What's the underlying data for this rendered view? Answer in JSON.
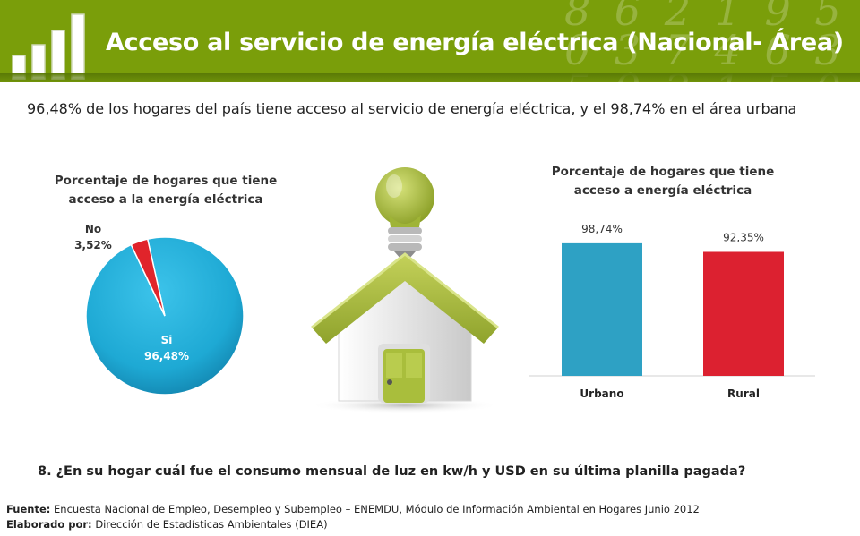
{
  "header": {
    "title": "Acceso al servicio de energía eléctrica (Nacional- Área)",
    "deco_digits": "8 6 2 1 9 5\n0 3 7 4 6 3 8\n5 9 2 1 5 0"
  },
  "subtitle": "96,48% de los hogares del país tiene acceso al servicio de energía eléctrica, y el 98,74% en el área urbana",
  "colors": {
    "header_green": "#7a9e0a",
    "pie_si": "#1ea9d4",
    "pie_no": "#e0242b",
    "bar_urbano": "#2ea1c4",
    "bar_rural": "#dc2130",
    "house_green": "#a4b83c"
  },
  "chart_data": [
    {
      "type": "pie",
      "title": "Porcentaje de hogares que tiene acceso a la energía eléctrica",
      "categories": [
        "Si",
        "No"
      ],
      "values": [
        96.48,
        3.52
      ],
      "labels": [
        {
          "name": "Si",
          "value": "96,48%"
        },
        {
          "name": "No",
          "value": "3,52%"
        }
      ]
    },
    {
      "type": "bar",
      "title": "Porcentaje de hogares que tiene acceso a energía eléctrica",
      "categories": [
        "Urbano",
        "Rural"
      ],
      "values": [
        98.74,
        92.35
      ],
      "value_labels": [
        "98,74%",
        "92,35%"
      ],
      "ylim": [
        0,
        100
      ],
      "xlabel": "",
      "ylabel": ""
    }
  ],
  "question": "8. ¿En su hogar cuál fue el consumo mensual de luz en kw/h y USD en su última planilla pagada?",
  "footer": {
    "source_label": "Fuente:",
    "source_text": " Encuesta Nacional de Empleo, Desempleo y Subempleo – ENEMDU, Módulo de Información Ambiental en Hogares Junio 2012",
    "prepared_label": "Elaborado por:",
    "prepared_text": " Dirección de Estadísticas Ambientales (DIEA)"
  }
}
